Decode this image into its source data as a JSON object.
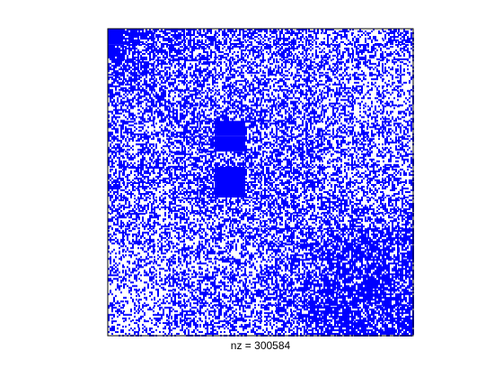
{
  "chart_data": {
    "type": "heatmap",
    "kind": "sparsity pattern (spy plot)",
    "xlabel": "nz = 300584",
    "nonzero_count": 300584,
    "title": "",
    "ylabel": "",
    "grid": false,
    "ticks": "none",
    "marker_color": "#0000ff",
    "background_color": "#ffffff",
    "axes_color": "#000000",
    "density_grid_rows": [
      "98766555555554444444",
      "87666555444544444444",
      "66655554444444444433",
      "66555554444444444333",
      "55555555555555443333",
      "54555555555555443333",
      "54545569955555444444",
      "54545569955555444444",
      "54545555555555444444",
      "54545559955555444444",
      "54545559955555444444",
      "44444455555555555555",
      "44444444455555555555",
      "44444444445556777777",
      "33334444445566777777",
      "33334444445566677777",
      "33334444445566777777",
      "33334444445566777777",
      "33334444445567777777",
      "33334444445566777777"
    ]
  }
}
